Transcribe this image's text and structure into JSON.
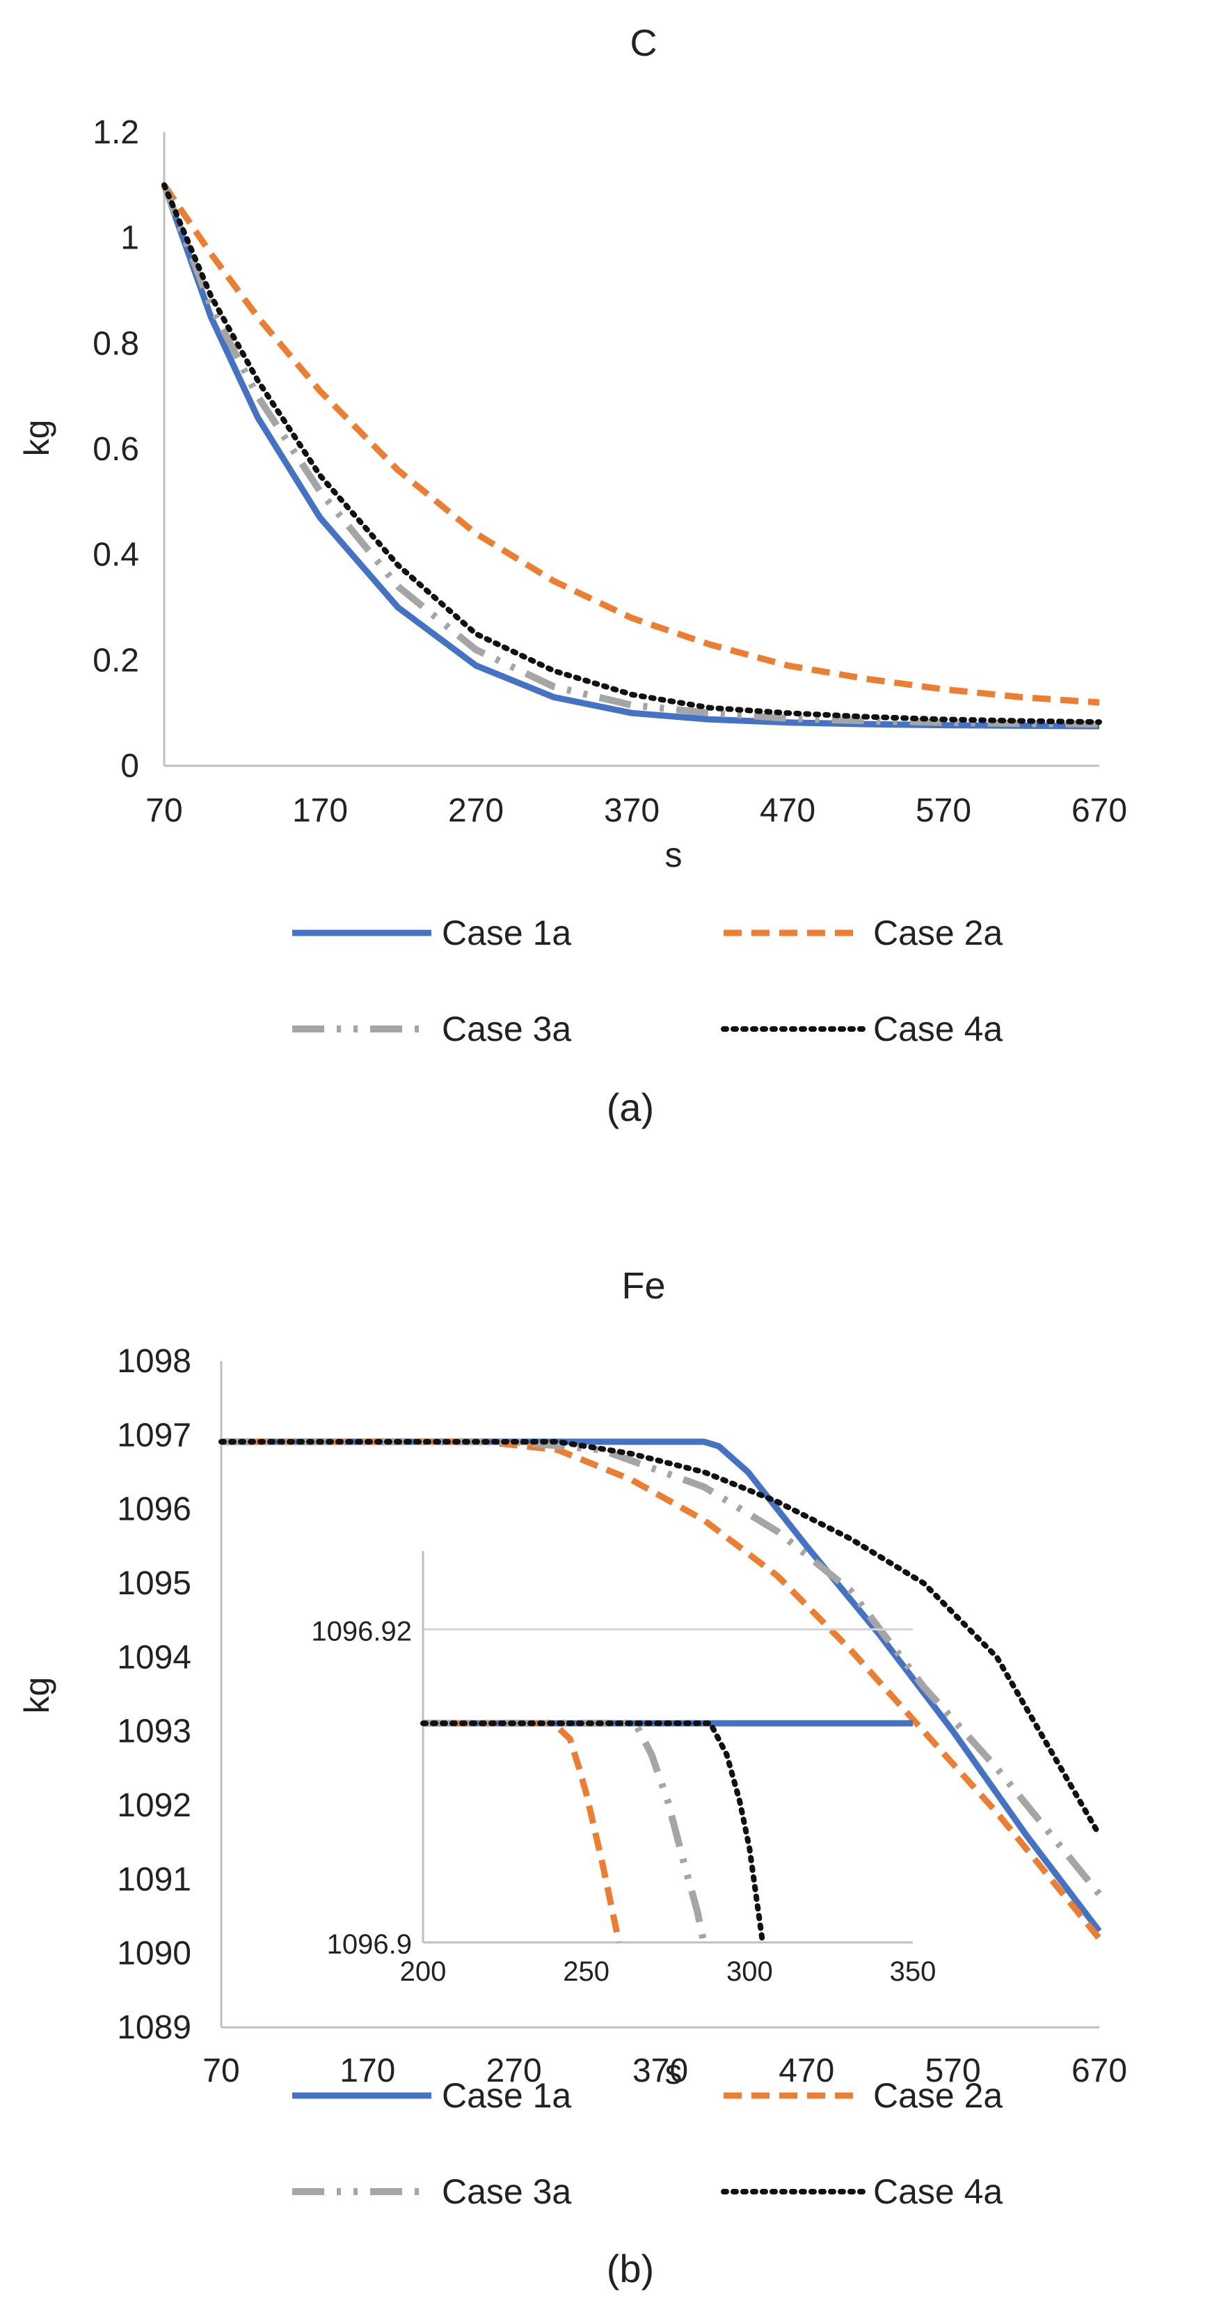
{
  "line_styles": {
    "Case 1a": {
      "color": "#4472C4",
      "dash": "",
      "width": 9
    },
    "Case 2a": {
      "color": "#ED7D31",
      "dash": "26 14",
      "width": 9
    },
    "Case 3a": {
      "color": "#A5A5A5",
      "dash": "46 18 6 18 6 18",
      "width": 10
    },
    "Case 4a": {
      "color": "#111111",
      "dash": "4 10",
      "width": 8
    }
  },
  "chart_data": [
    {
      "type": "line",
      "title": "C",
      "xlabel": "s",
      "ylabel": "kg",
      "panel_label": "(a)",
      "xlim": [
        70,
        670
      ],
      "ylim": [
        0,
        1.2
      ],
      "xticks": [
        "70",
        "170",
        "270",
        "370",
        "470",
        "570",
        "670"
      ],
      "yticks": [
        "0",
        "0.2",
        "0.4",
        "0.6",
        "0.8",
        "1",
        "1.2"
      ],
      "grid": false,
      "legend": "bottom",
      "legend_rows": [
        [
          "Case 1a",
          "Case 2a"
        ],
        [
          "Case 3a",
          "Case 4a"
        ]
      ],
      "x": [
        70,
        100,
        130,
        170,
        220,
        270,
        320,
        370,
        420,
        470,
        520,
        570,
        620,
        670
      ],
      "series": [
        {
          "name": "Case 1a",
          "values": [
            1.1,
            0.85,
            0.66,
            0.47,
            0.3,
            0.19,
            0.13,
            0.1,
            0.088,
            0.082,
            0.079,
            0.077,
            0.076,
            0.075
          ]
        },
        {
          "name": "Case 2a",
          "values": [
            1.1,
            0.97,
            0.85,
            0.71,
            0.56,
            0.44,
            0.35,
            0.28,
            0.23,
            0.19,
            0.165,
            0.145,
            0.13,
            0.12
          ]
        },
        {
          "name": "Case 3a",
          "values": [
            1.1,
            0.87,
            0.7,
            0.52,
            0.34,
            0.22,
            0.15,
            0.115,
            0.1,
            0.09,
            0.085,
            0.082,
            0.08,
            0.079
          ]
        },
        {
          "name": "Case 4a",
          "values": [
            1.1,
            0.89,
            0.73,
            0.55,
            0.38,
            0.25,
            0.18,
            0.135,
            0.11,
            0.1,
            0.093,
            0.088,
            0.085,
            0.083
          ]
        }
      ]
    },
    {
      "type": "line",
      "title": "Fe",
      "xlabel": "s",
      "ylabel": "kg",
      "panel_label": "(b)",
      "xlim": [
        70,
        670
      ],
      "ylim": [
        1089,
        1098
      ],
      "xticks": [
        "70",
        "170",
        "270",
        "370",
        "470",
        "570",
        "670"
      ],
      "yticks": [
        "1089",
        "1090",
        "1091",
        "1092",
        "1093",
        "1094",
        "1095",
        "1096",
        "1097",
        "1098"
      ],
      "grid": false,
      "legend": "bottom",
      "legend_rows": [
        [
          "Case 1a",
          "Case 2a"
        ],
        [
          "Case 3a",
          "Case 4a"
        ]
      ],
      "series": [
        {
          "name": "Case 1a",
          "x": [
            70,
            200,
            300,
            380,
            400,
            410,
            430,
            470,
            520,
            570,
            620,
            670
          ],
          "values": [
            1096.91,
            1096.91,
            1096.91,
            1096.91,
            1096.91,
            1096.85,
            1096.5,
            1095.5,
            1094.3,
            1093,
            1091.6,
            1090.3
          ]
        },
        {
          "name": "Case 2a",
          "x": [
            70,
            200,
            250,
            300,
            350,
            400,
            450,
            500,
            550,
            600,
            670
          ],
          "values": [
            1096.91,
            1096.91,
            1096.91,
            1096.8,
            1096.4,
            1095.85,
            1095.1,
            1094.1,
            1093,
            1091.9,
            1090.2
          ]
        },
        {
          "name": "Case 3a",
          "x": [
            70,
            200,
            270,
            330,
            400,
            450,
            500,
            550,
            600,
            670
          ],
          "values": [
            1096.91,
            1096.91,
            1096.91,
            1096.8,
            1096.3,
            1095.7,
            1094.9,
            1093.6,
            1092.5,
            1090.8
          ]
        },
        {
          "name": "Case 4a",
          "x": [
            70,
            200,
            300,
            350,
            400,
            450,
            500,
            550,
            600,
            670
          ],
          "values": [
            1096.91,
            1096.91,
            1096.91,
            1096.75,
            1096.5,
            1096.1,
            1095.6,
            1095,
            1094,
            1091.6
          ]
        }
      ],
      "inset": {
        "xlim": [
          200,
          350
        ],
        "ylim": [
          1096.9,
          1096.925
        ],
        "xticks": [
          "200",
          "250",
          "300",
          "350"
        ],
        "yticks": [
          "1096.9",
          "1096.92"
        ],
        "ytick_values": [
          1096.9,
          1096.92
        ],
        "grid": "horizontal",
        "series": [
          {
            "name": "Case 1a",
            "x": [
              200,
              350
            ],
            "values": [
              1096.914,
              1096.914
            ]
          },
          {
            "name": "Case 2a",
            "x": [
              200,
              240,
              245,
              248,
              250,
              255,
              260
            ],
            "values": [
              1096.914,
              1096.914,
              1096.913,
              1096.911,
              1096.9095,
              1096.905,
              1096.9
            ]
          },
          {
            "name": "Case 3a",
            "x": [
              200,
              265,
              270,
              275,
              280,
              284,
              286
            ],
            "values": [
              1096.914,
              1096.914,
              1096.912,
              1096.909,
              1096.905,
              1096.902,
              1096.9
            ]
          },
          {
            "name": "Case 4a",
            "x": [
              200,
              288,
              293,
              297,
              300,
              302,
              304
            ],
            "values": [
              1096.914,
              1096.914,
              1096.912,
              1096.909,
              1096.906,
              1096.903,
              1096.9
            ]
          }
        ]
      }
    }
  ]
}
